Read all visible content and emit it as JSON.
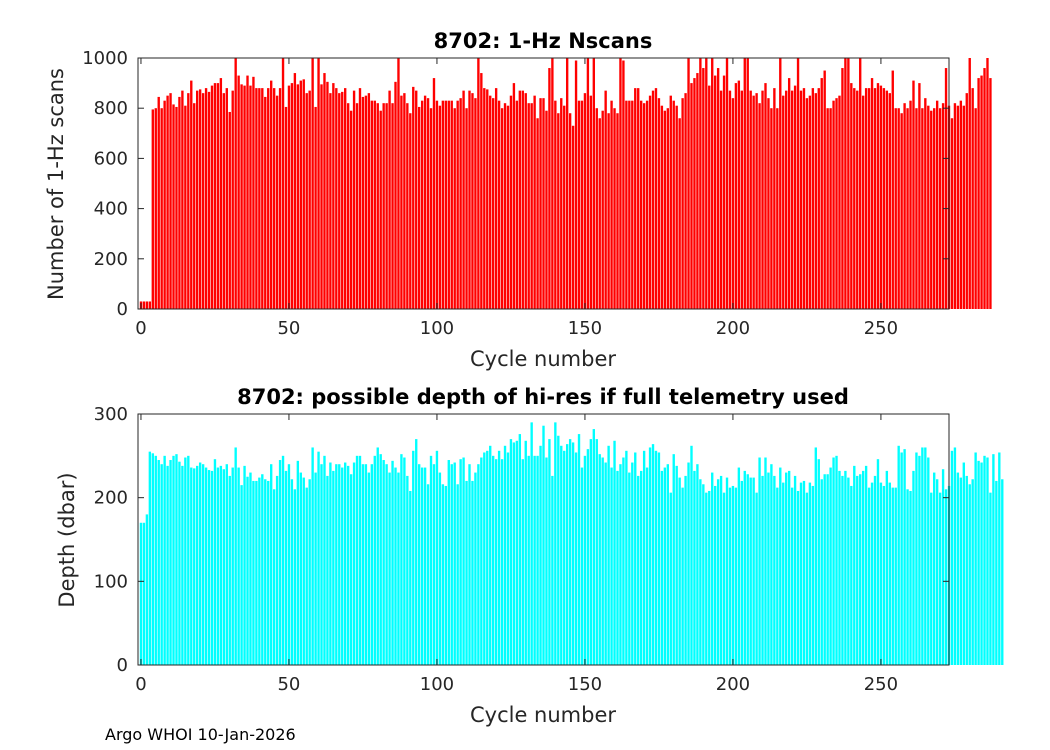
{
  "footer": "Argo WHOI 10-Jan-2026",
  "chart_data": [
    {
      "type": "bar",
      "title": "8702: 1-Hz Nscans",
      "xlabel": "Cycle number",
      "ylabel": "Number of 1-Hz scans",
      "xlim": [
        -1,
        273
      ],
      "ylim": [
        0,
        1000
      ],
      "xticks": [
        0,
        50,
        100,
        150,
        200,
        250
      ],
      "yticks": [
        0,
        200,
        400,
        600,
        800,
        1000
      ],
      "color": "#ff0000",
      "x_start": 0,
      "values": [
        30,
        30,
        30,
        30,
        795,
        800,
        845,
        800,
        830,
        850,
        860,
        815,
        805,
        845,
        870,
        810,
        860,
        910,
        820,
        870,
        875,
        860,
        880,
        865,
        890,
        900,
        900,
        920,
        860,
        880,
        785,
        870,
        1000,
        930,
        895,
        890,
        930,
        890,
        925,
        880,
        880,
        880,
        845,
        880,
        910,
        880,
        850,
        880,
        1000,
        805,
        890,
        900,
        940,
        895,
        910,
        915,
        860,
        870,
        1000,
        805,
        1000,
        895,
        940,
        905,
        860,
        900,
        880,
        860,
        865,
        880,
        820,
        790,
        870,
        820,
        880,
        845,
        850,
        860,
        830,
        830,
        820,
        790,
        820,
        820,
        870,
        820,
        905,
        1000,
        850,
        860,
        820,
        780,
        885,
        870,
        805,
        830,
        850,
        840,
        800,
        920,
        830,
        810,
        830,
        830,
        830,
        830,
        800,
        830,
        840,
        870,
        800,
        870,
        860,
        840,
        1000,
        940,
        880,
        875,
        850,
        840,
        880,
        830,
        800,
        820,
        810,
        850,
        900,
        830,
        870,
        870,
        860,
        820,
        820,
        850,
        760,
        840,
        840,
        790,
        960,
        1000,
        830,
        780,
        840,
        810,
        1000,
        780,
        730,
        990,
        830,
        830,
        860,
        1000,
        850,
        1000,
        800,
        760,
        790,
        870,
        780,
        830,
        800,
        780,
        1000,
        990,
        830,
        830,
        830,
        880,
        880,
        830,
        820,
        830,
        850,
        870,
        880,
        840,
        810,
        790,
        800,
        850,
        830,
        810,
        760,
        840,
        860,
        1000,
        900,
        920,
        940,
        1000,
        960,
        1000,
        890,
        1000,
        930,
        960,
        870,
        930,
        1000,
        870,
        840,
        900,
        910,
        870,
        1000,
        1000,
        870,
        850,
        860,
        820,
        870,
        900,
        840,
        800,
        880,
        800,
        1000,
        850,
        870,
        920,
        870,
        890,
        1000,
        870,
        880,
        840,
        850,
        880,
        860,
        880,
        920,
        950,
        800,
        800,
        830,
        840,
        850,
        960,
        1000,
        1000,
        900,
        880,
        870,
        1000,
        850,
        880,
        880,
        920,
        880,
        900,
        890,
        880,
        870,
        860,
        950,
        800,
        800,
        780,
        820,
        800,
        830,
        910,
        800,
        900,
        800,
        840,
        810,
        790,
        800,
        830,
        800,
        820,
        960,
        810,
        760,
        820,
        810,
        830,
        810,
        860,
        1000,
        880,
        800,
        920,
        930,
        960,
        1000,
        920
      ]
    },
    {
      "type": "bar",
      "title": "8702: possible depth of hi-res if full telemetry used",
      "xlabel": "Cycle number",
      "ylabel": "Depth (dbar)",
      "xlim": [
        -1,
        273
      ],
      "ylim": [
        0,
        300
      ],
      "xticks": [
        0,
        50,
        100,
        150,
        200,
        250
      ],
      "yticks": [
        0,
        100,
        200,
        300
      ],
      "color": "#00ffff",
      "x_start": 0,
      "values": [
        170,
        170,
        180,
        255,
        253,
        250,
        245,
        240,
        250,
        238,
        245,
        250,
        252,
        243,
        238,
        248,
        250,
        236,
        235,
        238,
        242,
        240,
        236,
        233,
        232,
        246,
        236,
        238,
        234,
        240,
        226,
        236,
        260,
        236,
        215,
        238,
        225,
        230,
        220,
        220,
        224,
        228,
        222,
        220,
        240,
        210,
        226,
        245,
        250,
        232,
        240,
        222,
        210,
        244,
        230,
        224,
        212,
        222,
        260,
        230,
        255,
        240,
        250,
        226,
        242,
        232,
        240,
        240,
        236,
        242,
        238,
        228,
        242,
        250,
        250,
        240,
        240,
        230,
        240,
        250,
        260,
        252,
        245,
        240,
        230,
        244,
        236,
        230,
        252,
        248,
        226,
        208,
        256,
        270,
        240,
        236,
        236,
        216,
        250,
        240,
        256,
        230,
        216,
        214,
        245,
        240,
        242,
        216,
        246,
        248,
        220,
        240,
        220,
        230,
        240,
        248,
        254,
        256,
        262,
        250,
        246,
        256,
        246,
        262,
        254,
        270,
        266,
        268,
        276,
        246,
        268,
        250,
        290,
        250,
        250,
        262,
        286,
        248,
        270,
        226,
        290,
        274,
        262,
        256,
        264,
        270,
        266,
        254,
        276,
        236,
        250,
        258,
        270,
        282,
        270,
        252,
        248,
        242,
        262,
        236,
        268,
        232,
        240,
        248,
        256,
        230,
        242,
        254,
        226,
        232,
        256,
        236,
        260,
        264,
        256,
        254,
        232,
        236,
        240,
        206,
        252,
        238,
        224,
        212,
        226,
        242,
        262,
        232,
        240,
        222,
        216,
        206,
        208,
        230,
        214,
        222,
        226,
        206,
        224,
        212,
        214,
        212,
        236,
        220,
        232,
        228,
        224,
        224,
        206,
        248,
        226,
        248,
        230,
        240,
        226,
        212,
        236,
        218,
        230,
        232,
        212,
        226,
        208,
        218,
        220,
        206,
        218,
        214,
        260,
        246,
        222,
        228,
        228,
        236,
        248,
        250,
        232,
        226,
        232,
        224,
        214,
        238,
        226,
        228,
        232,
        238,
        212,
        218,
        226,
        246,
        218,
        214,
        232,
        218,
        212,
        212,
        262,
        254,
        258,
        210,
        208,
        232,
        254,
        250,
        260,
        260,
        248,
        206,
        230,
        222,
        206,
        234,
        210,
        214,
        256,
        260,
        230,
        224,
        242,
        226,
        216,
        222,
        254,
        244,
        242,
        250,
        248,
        206,
        252,
        220,
        254,
        222
      ]
    }
  ]
}
